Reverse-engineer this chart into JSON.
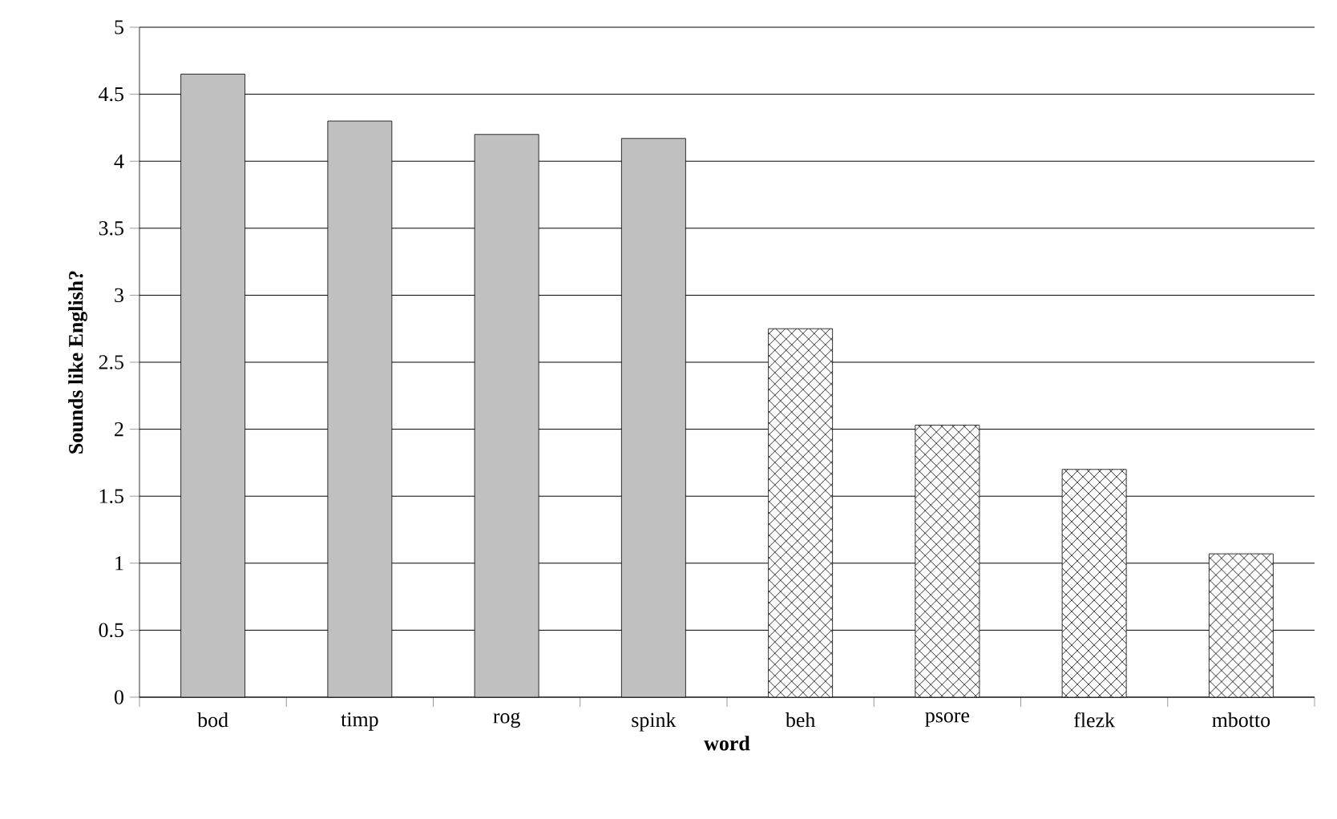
{
  "chart_data": {
    "type": "bar",
    "xlabel": "word",
    "ylabel": "Sounds like English?",
    "categories": [
      "bod",
      "timp",
      "rog",
      "spink",
      "beh",
      "psore",
      "flezk",
      "mbotto"
    ],
    "values": [
      4.65,
      4.3,
      4.2,
      4.17,
      2.75,
      2.03,
      1.7,
      1.07
    ],
    "colors": [
      "#c0c0c0",
      "#c0c0c0",
      "#c0c0c0",
      "#c0c0c0",
      "#ffffff",
      "#ffffff",
      "#ffffff",
      "#ffffff"
    ],
    "ylim": [
      0,
      5
    ],
    "yticks": [
      0,
      0.5,
      1,
      1.5,
      2,
      2.5,
      3,
      3.5,
      4,
      4.5,
      5
    ],
    "grid": "y"
  }
}
